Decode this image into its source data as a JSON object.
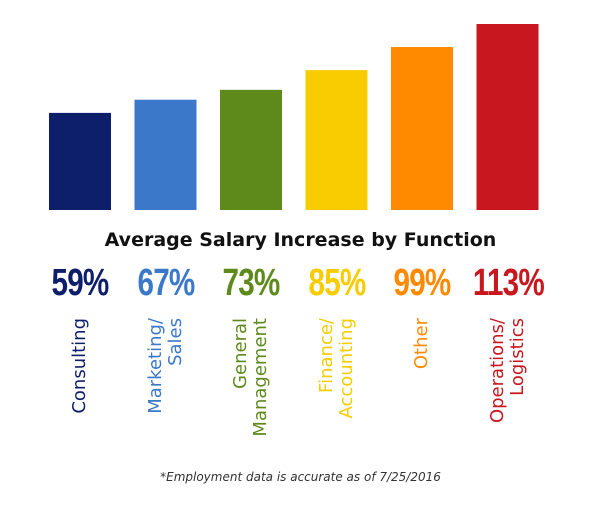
{
  "chart_data": {
    "type": "bar",
    "title": "Average Salary Increase by Function",
    "categories": [
      "Consulting",
      "Marketing/\nSales",
      "General\nManagement",
      "Finance/\nAccounting",
      "Other",
      "Operations/\nLogistics"
    ],
    "values": [
      59,
      67,
      73,
      85,
      99,
      113
    ],
    "value_labels": [
      "59%",
      "67%",
      "73%",
      "85%",
      "99%",
      "113%"
    ],
    "unit": "%",
    "colors": [
      "#0d1f6b",
      "#3b78c9",
      "#5e8a1c",
      "#f8cc00",
      "#ff8a00",
      "#c8171e"
    ],
    "ylim": [
      0,
      113
    ],
    "grid": false
  },
  "footnote": "*Employment data is accurate as of 7/25/2016"
}
